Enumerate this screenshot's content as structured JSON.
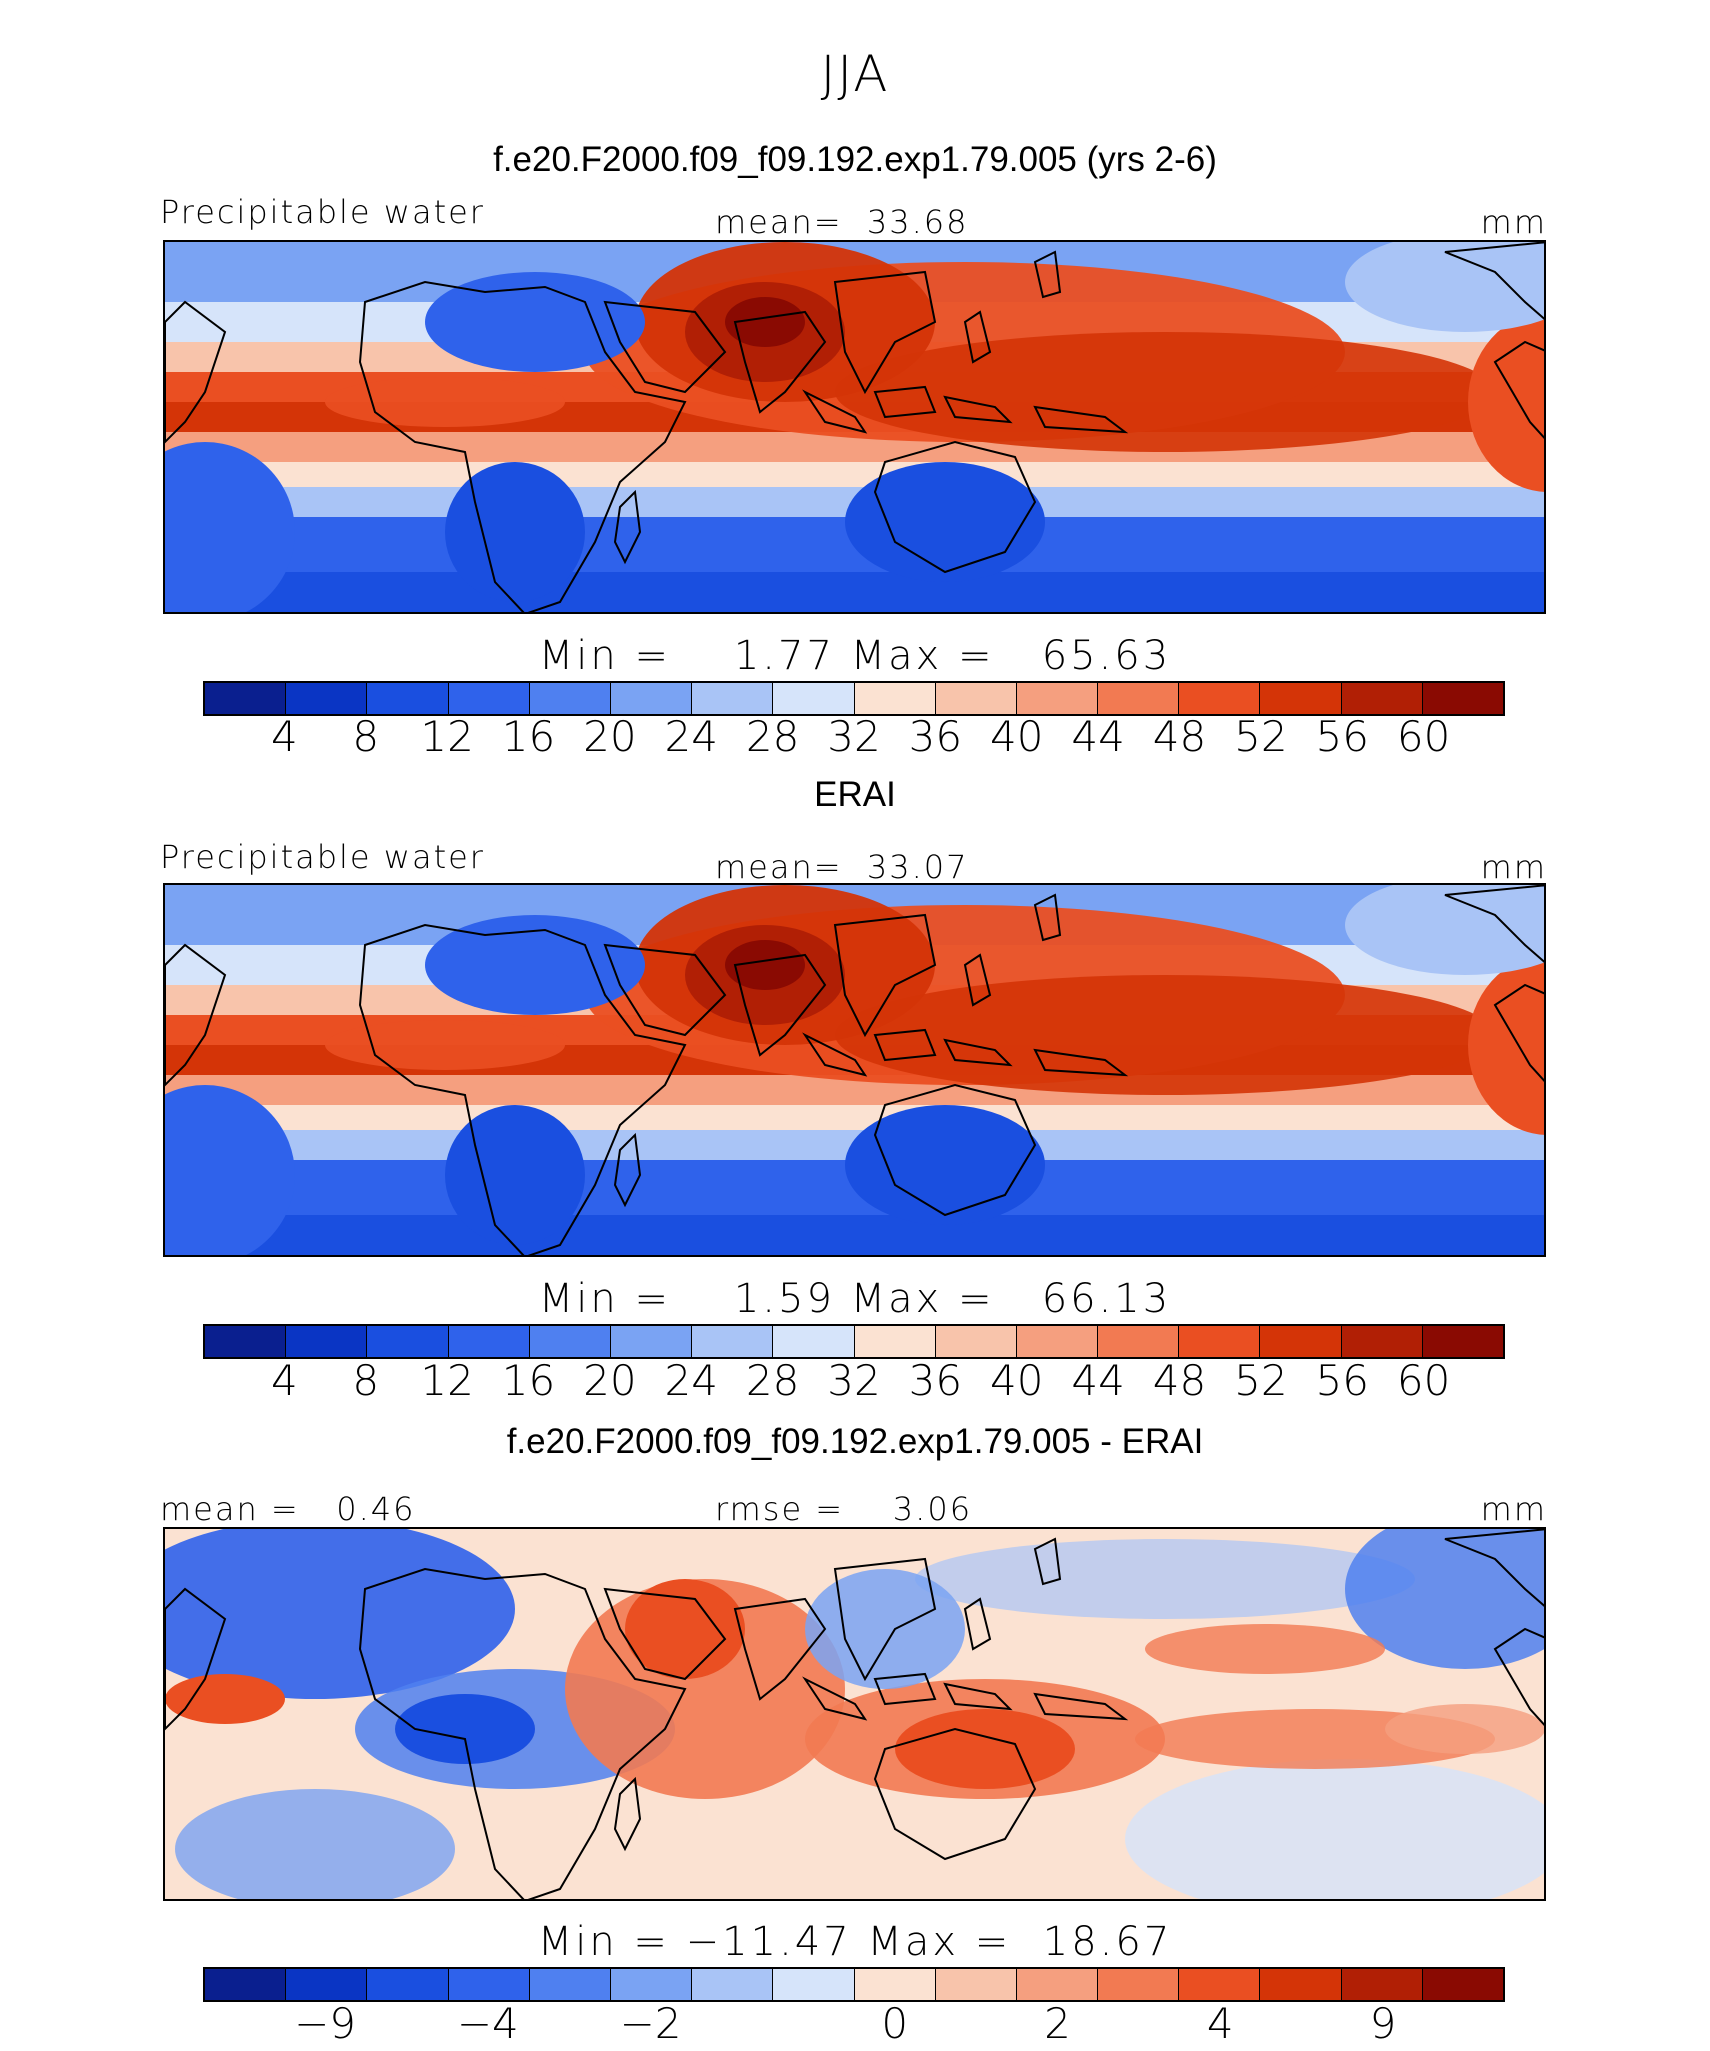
{
  "title": "JJA",
  "colors": [
    "#0a1f8f",
    "#0a35c4",
    "#1a4fe0",
    "#2f62eb",
    "#4f80f0",
    "#7aa3f3",
    "#a9c4f6",
    "#d6e4fa",
    "#fbe2d2",
    "#f8c4ab",
    "#f59f7f",
    "#f27a52",
    "#ea4f22",
    "#d43407",
    "#b11f05",
    "#8a0a02"
  ],
  "panels": [
    {
      "title": "f.e20.F2000.f09_f09.192.exp1.79.005 (yrs 2-6)",
      "left_label": "Precipitable water",
      "center_label": "mean=  33.68",
      "right_label": "mm",
      "minmax": "Min =    1.77 Max =   65.63",
      "tick_labels": [
        "4",
        "8",
        "12",
        "16",
        "20",
        "24",
        "28",
        "32",
        "36",
        "40",
        "44",
        "48",
        "52",
        "56",
        "60"
      ]
    },
    {
      "title": "ERAI",
      "left_label": "Precipitable water",
      "center_label": "mean=  33.07",
      "right_label": "mm",
      "minmax": "Min =    1.59 Max =   66.13",
      "tick_labels": [
        "4",
        "8",
        "12",
        "16",
        "20",
        "24",
        "28",
        "32",
        "36",
        "40",
        "44",
        "48",
        "52",
        "56",
        "60"
      ]
    },
    {
      "title": "f.e20.F2000.f09_f09.192.exp1.79.005 - ERAI",
      "left_label": "mean =   0.46",
      "center_label": "rmse =    3.06",
      "right_label": "mm",
      "minmax": "Min = −11.47 Max =  18.67",
      "tick_labels": [
        "−9",
        "−4",
        "−2",
        "0",
        "2",
        "4",
        "9"
      ]
    }
  ]
}
